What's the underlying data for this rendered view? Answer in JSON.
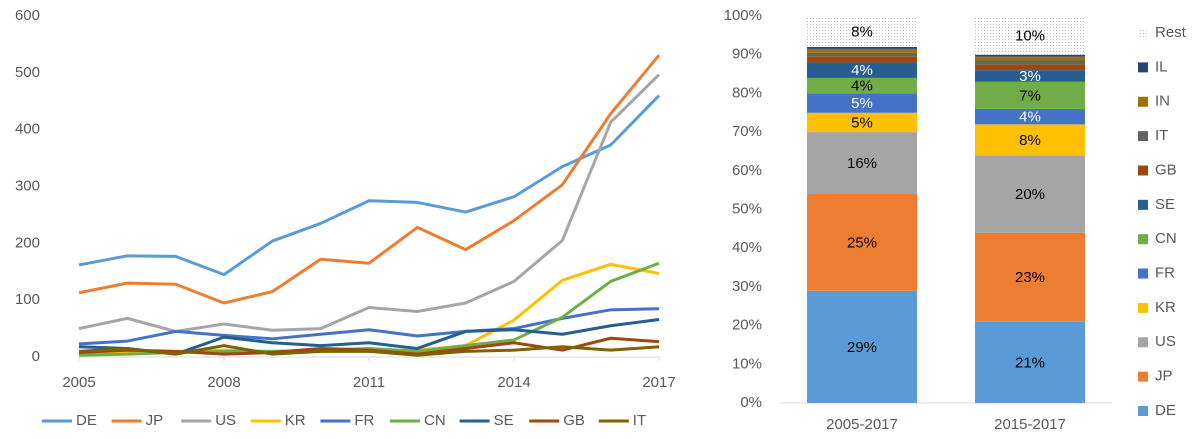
{
  "chart_data": [
    {
      "type": "line",
      "x": [
        2005,
        2006,
        2007,
        2008,
        2009,
        2010,
        2011,
        2012,
        2013,
        2014,
        2015,
        2016,
        2017
      ],
      "xlim": [
        2005,
        2017
      ],
      "xticks": [
        2005,
        2008,
        2011,
        2014,
        2017
      ],
      "ylim": [
        0,
        600
      ],
      "yticks": [
        0,
        100,
        200,
        300,
        400,
        500,
        600
      ],
      "legend": "bottom",
      "series": [
        {
          "name": "DE",
          "color": "#5b9bd5",
          "values": [
            162,
            178,
            177,
            145,
            204,
            235,
            275,
            272,
            255,
            282,
            335,
            373,
            460
          ]
        },
        {
          "name": "JP",
          "color": "#ed7d31",
          "values": [
            113,
            130,
            128,
            95,
            115,
            172,
            165,
            228,
            189,
            240,
            303,
            428,
            531
          ]
        },
        {
          "name": "US",
          "color": "#a5a5a5",
          "values": [
            50,
            68,
            45,
            58,
            47,
            50,
            87,
            80,
            95,
            133,
            205,
            413,
            497
          ]
        },
        {
          "name": "KR",
          "color": "#ffc000",
          "values": [
            5,
            8,
            10,
            12,
            10,
            10,
            12,
            12,
            20,
            65,
            135,
            163,
            147
          ]
        },
        {
          "name": "FR",
          "color": "#4472c4",
          "values": [
            23,
            28,
            45,
            38,
            32,
            40,
            48,
            37,
            45,
            50,
            68,
            83,
            85
          ]
        },
        {
          "name": "CN",
          "color": "#70ad47",
          "values": [
            3,
            5,
            8,
            10,
            10,
            12,
            15,
            10,
            20,
            30,
            70,
            133,
            165
          ]
        },
        {
          "name": "SE",
          "color": "#255e91",
          "values": [
            18,
            15,
            5,
            35,
            25,
            20,
            25,
            15,
            45,
            48,
            40,
            55,
            66
          ]
        },
        {
          "name": "GB",
          "color": "#9e480e",
          "values": [
            8,
            12,
            10,
            5,
            8,
            15,
            12,
            5,
            15,
            25,
            12,
            33,
            27
          ]
        },
        {
          "name": "IT",
          "color": "#806000",
          "values": [
            10,
            15,
            5,
            20,
            5,
            10,
            10,
            3,
            10,
            12,
            18,
            12,
            18
          ]
        }
      ]
    },
    {
      "type": "stacked_bar",
      "categories": [
        "2005-2017",
        "2015-2017"
      ],
      "ylim": [
        0,
        100
      ],
      "yticks": [
        {
          "value": 0,
          "label": "0%"
        },
        {
          "value": 10,
          "label": "10%"
        },
        {
          "value": 20,
          "label": "20%"
        },
        {
          "value": 30,
          "label": "30%"
        },
        {
          "value": 40,
          "label": "40%"
        },
        {
          "value": 50,
          "label": "50%"
        },
        {
          "value": 60,
          "label": "60%"
        },
        {
          "value": 70,
          "label": "70%"
        },
        {
          "value": 80,
          "label": "80%"
        },
        {
          "value": 90,
          "label": "90%"
        },
        {
          "value": 100,
          "label": "100%"
        }
      ],
      "legend": "right",
      "series": [
        {
          "name": "DE",
          "color": "#5b9bd5",
          "values": [
            29,
            21
          ],
          "value_labels": [
            "29%",
            "21%"
          ]
        },
        {
          "name": "JP",
          "color": "#ed7d31",
          "values": [
            25,
            23
          ],
          "value_labels": [
            "25%",
            "23%"
          ]
        },
        {
          "name": "US",
          "color": "#a5a5a5",
          "values": [
            16,
            20
          ],
          "value_labels": [
            "16%",
            "20%"
          ]
        },
        {
          "name": "KR",
          "color": "#ffc000",
          "values": [
            5,
            8
          ],
          "value_labels": [
            "5%",
            "8%"
          ]
        },
        {
          "name": "FR",
          "color": "#4472c4",
          "values": [
            5,
            4
          ],
          "value_labels": [
            "5%",
            "4%"
          ]
        },
        {
          "name": "CN",
          "color": "#70ad47",
          "values": [
            4,
            7
          ],
          "value_labels": [
            "4%",
            "7%"
          ]
        },
        {
          "name": "SE",
          "color": "#255e91",
          "values": [
            4,
            3
          ],
          "value_labels": [
            "4%",
            "3%"
          ]
        },
        {
          "name": "GB",
          "color": "#9e480e",
          "values": [
            1.5,
            1.5
          ]
        },
        {
          "name": "IT",
          "color": "#636363",
          "values": [
            1,
            1
          ]
        },
        {
          "name": "IN",
          "color": "#997300",
          "values": [
            1,
            1
          ]
        },
        {
          "name": "IL",
          "color": "#264478",
          "values": [
            0.5,
            0.5
          ]
        },
        {
          "name": "Rest",
          "color": "#bfbfbf",
          "pattern": "dots",
          "values": [
            8,
            10
          ],
          "value_labels": [
            "8%",
            "10%"
          ]
        }
      ]
    }
  ]
}
